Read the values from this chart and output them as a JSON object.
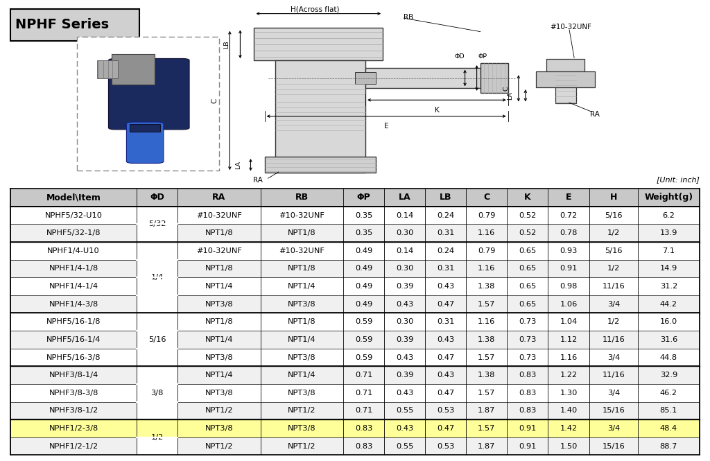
{
  "title": "NPHF Series",
  "unit_note": "[Unit: inch]",
  "headers": [
    "Model\\Item",
    "ΦD",
    "RA",
    "RB",
    "ΦP",
    "LA",
    "LB",
    "C",
    "K",
    "E",
    "H",
    "Weight(g)"
  ],
  "col_widths": [
    1.6,
    0.52,
    1.05,
    1.05,
    0.52,
    0.52,
    0.52,
    0.52,
    0.52,
    0.52,
    0.62,
    0.78
  ],
  "rows": [
    [
      "NPHF5/32-U10",
      "5/32",
      "#10-32UNF",
      "#10-32UNF",
      "0.35",
      "0.14",
      "0.24",
      "0.79",
      "0.52",
      "0.72",
      "5/16",
      "6.2"
    ],
    [
      "NPHF5/32-1/8",
      "",
      "NPT1/8",
      "NPT1/8",
      "0.35",
      "0.30",
      "0.31",
      "1.16",
      "0.52",
      "0.78",
      "1/2",
      "13.9"
    ],
    [
      "NPHF1/4-U10",
      "1/4",
      "#10-32UNF",
      "#10-32UNF",
      "0.49",
      "0.14",
      "0.24",
      "0.79",
      "0.65",
      "0.93",
      "5/16",
      "7.1"
    ],
    [
      "NPHF1/4-1/8",
      "",
      "NPT1/8",
      "NPT1/8",
      "0.49",
      "0.30",
      "0.31",
      "1.16",
      "0.65",
      "0.91",
      "1/2",
      "14.9"
    ],
    [
      "NPHF1/4-1/4",
      "",
      "NPT1/4",
      "NPT1/4",
      "0.49",
      "0.39",
      "0.43",
      "1.38",
      "0.65",
      "0.98",
      "11/16",
      "31.2"
    ],
    [
      "NPHF1/4-3/8",
      "",
      "NPT3/8",
      "NPT3/8",
      "0.49",
      "0.43",
      "0.47",
      "1.57",
      "0.65",
      "1.06",
      "3/4",
      "44.2"
    ],
    [
      "NPHF5/16-1/8",
      "5/16",
      "NPT1/8",
      "NPT1/8",
      "0.59",
      "0.30",
      "0.31",
      "1.16",
      "0.73",
      "1.04",
      "1/2",
      "16.0"
    ],
    [
      "NPHF5/16-1/4",
      "",
      "NPT1/4",
      "NPT1/4",
      "0.59",
      "0.39",
      "0.43",
      "1.38",
      "0.73",
      "1.12",
      "11/16",
      "31.6"
    ],
    [
      "NPHF5/16-3/8",
      "",
      "NPT3/8",
      "NPT3/8",
      "0.59",
      "0.43",
      "0.47",
      "1.57",
      "0.73",
      "1.16",
      "3/4",
      "44.8"
    ],
    [
      "NPHF3/8-1/4",
      "3/8",
      "NPT1/4",
      "NPT1/4",
      "0.71",
      "0.39",
      "0.43",
      "1.38",
      "0.83",
      "1.22",
      "11/16",
      "32.9"
    ],
    [
      "NPHF3/8-3/8",
      "",
      "NPT3/8",
      "NPT3/8",
      "0.71",
      "0.43",
      "0.47",
      "1.57",
      "0.83",
      "1.30",
      "3/4",
      "46.2"
    ],
    [
      "NPHF3/8-1/2",
      "",
      "NPT1/2",
      "NPT1/2",
      "0.71",
      "0.55",
      "0.53",
      "1.87",
      "0.83",
      "1.40",
      "15/16",
      "85.1"
    ],
    [
      "NPHF1/2-3/8",
      "1/2",
      "NPT3/8",
      "NPT3/8",
      "0.83",
      "0.43",
      "0.47",
      "1.57",
      "0.91",
      "1.42",
      "3/4",
      "48.4"
    ],
    [
      "NPHF1/2-1/2",
      "",
      "NPT1/2",
      "NPT1/2",
      "0.83",
      "0.55",
      "0.53",
      "1.87",
      "0.91",
      "1.50",
      "15/16",
      "88.7"
    ]
  ],
  "highlighted_row": 12,
  "highlight_color": "#FFFF99",
  "header_bg": "#C8C8C8",
  "merge_groups": [
    {
      "rows": [
        0,
        1
      ],
      "col": 1,
      "value": "5/32"
    },
    {
      "rows": [
        2,
        3,
        4,
        5
      ],
      "col": 1,
      "value": "1/4"
    },
    {
      "rows": [
        6,
        7,
        8
      ],
      "col": 1,
      "value": "5/16"
    },
    {
      "rows": [
        9,
        10,
        11
      ],
      "col": 1,
      "value": "3/8"
    },
    {
      "rows": [
        12,
        13
      ],
      "col": 1,
      "value": "1/2"
    }
  ],
  "group_separator_rows": [
    2,
    6,
    9,
    12
  ],
  "bg_color": "#FFFFFF",
  "title_bg": "#D0D0D0",
  "title_fontsize": 14,
  "header_fontsize": 9,
  "cell_fontsize": 8.2,
  "row_alt_color": "#F0F0F0"
}
